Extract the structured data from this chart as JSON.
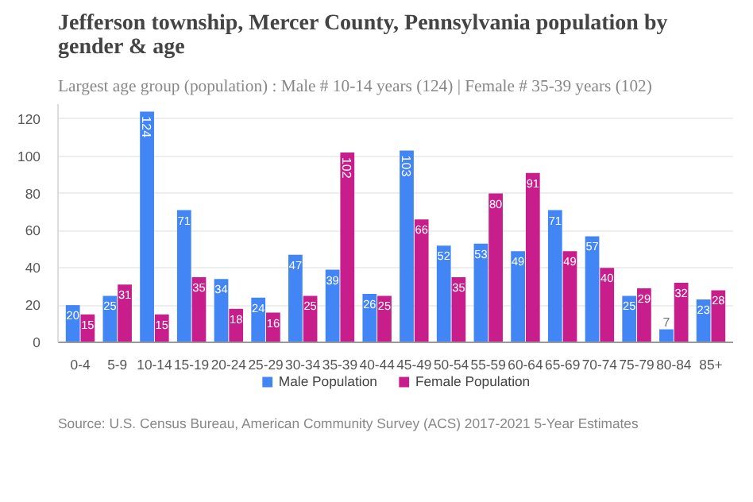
{
  "chart_data": {
    "type": "bar",
    "title": "Jefferson township, Mercer County, Pennsylvania population by gender & age",
    "subtitle": "Largest age group (population) : Male # 10-14 years (124) | Female # 35-39 years (102)",
    "categories": [
      "0-4",
      "5-9",
      "10-14",
      "15-19",
      "20-24",
      "25-29",
      "30-34",
      "35-39",
      "40-44",
      "45-49",
      "50-54",
      "55-59",
      "60-64",
      "65-69",
      "70-74",
      "75-79",
      "80-84",
      "85+"
    ],
    "series": [
      {
        "name": "Male Population",
        "color": "#4285f4",
        "values": [
          20,
          25,
          124,
          71,
          34,
          24,
          47,
          39,
          26,
          103,
          52,
          53,
          49,
          71,
          57,
          25,
          7,
          23
        ]
      },
      {
        "name": "Female Population",
        "color": "#c81e8c",
        "values": [
          15,
          31,
          15,
          35,
          18,
          16,
          25,
          102,
          25,
          66,
          35,
          80,
          91,
          49,
          40,
          29,
          32,
          28
        ]
      }
    ],
    "ylim": [
      0,
      128
    ],
    "yticks": [
      0,
      20,
      40,
      60,
      80,
      100,
      120
    ],
    "grid": "y",
    "legend": "bottom",
    "data_labels": true,
    "annotations": [
      "Source: U.S. Census Bureau, American Community Survey (ACS) 2017-2021 5-Year Estimates"
    ]
  }
}
